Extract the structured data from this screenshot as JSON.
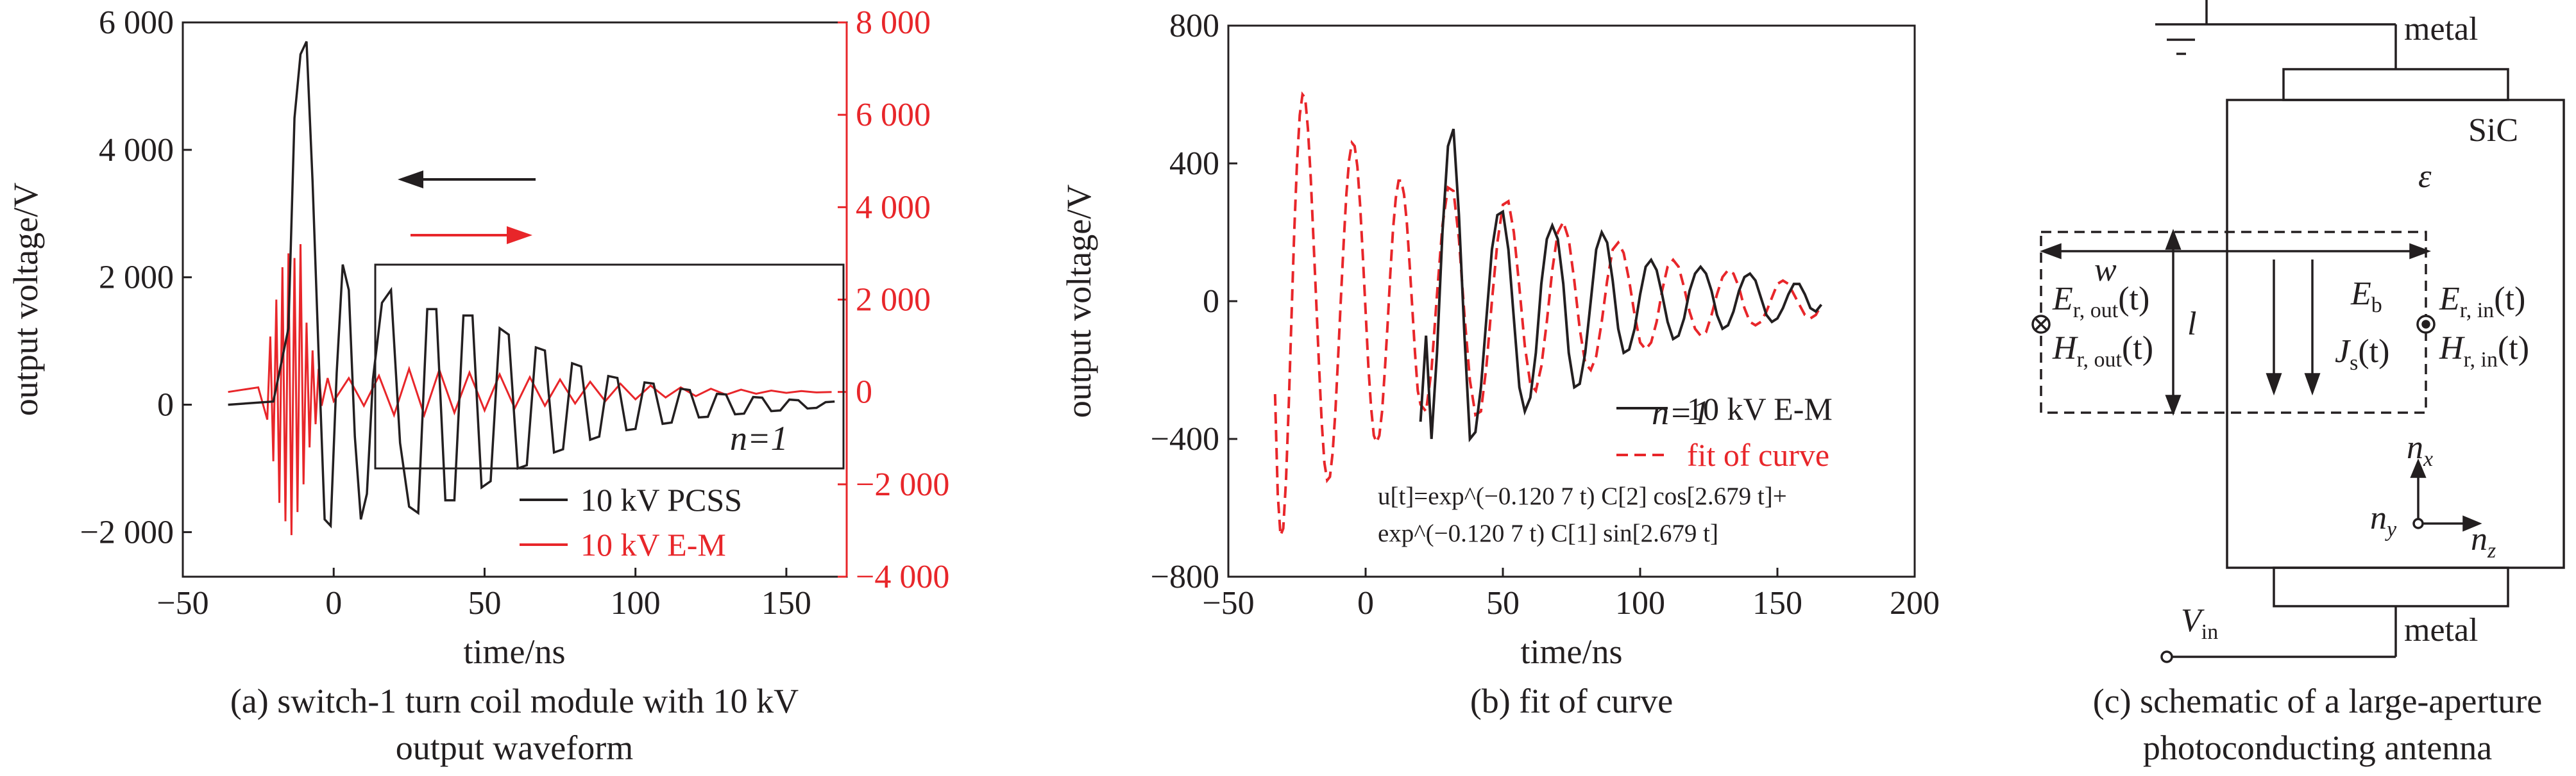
{
  "colors": {
    "black": "#231f20",
    "red": "#e8262a"
  },
  "chart_data": [
    {
      "type": "line",
      "caption_line1": "(a) switch-1 turn coil module with 10 kV",
      "caption_line2": "output waveform",
      "xlabel": "time/ns",
      "ylabel": "output voltage/V",
      "xlim": [
        -50,
        170
      ],
      "ylim_left": [
        -2700,
        6000
      ],
      "ylim_right": [
        -4000,
        8000
      ],
      "x_ticks": [
        "−50",
        "0",
        "50",
        "100",
        "150"
      ],
      "y_ticks_left": [
        "−2 000",
        "0",
        "2 000",
        "4 000",
        "6 000"
      ],
      "y_ticks_right": [
        "−4 000",
        "−2 000",
        "0",
        "2 000",
        "4 000",
        "6 000",
        "8 000"
      ],
      "inset_label": "n=1",
      "series": [
        {
          "name": "10 kV PCSS",
          "axis": "left",
          "color": "#231f20",
          "x": [
            -35,
            -20,
            -15,
            -13,
            -11,
            -9,
            -7,
            -5,
            -3,
            -1,
            1,
            3,
            5,
            7,
            9,
            11,
            13,
            16,
            19,
            22,
            25,
            28,
            31,
            34,
            37,
            40,
            43,
            46,
            49,
            52,
            55,
            58,
            61,
            64,
            67,
            70,
            73,
            76,
            79,
            82,
            85,
            88,
            91,
            94,
            97,
            100,
            103,
            106,
            109,
            112,
            115,
            118,
            121,
            124,
            127,
            130,
            133,
            136,
            139,
            142,
            145,
            148,
            151,
            154,
            157,
            160,
            163,
            166
          ],
          "y": [
            0,
            50,
            1200,
            4500,
            5500,
            5700,
            3500,
            800,
            -1800,
            -1900,
            500,
            2200,
            1800,
            -500,
            -1800,
            -1400,
            400,
            1600,
            1800,
            -600,
            -1600,
            -1700,
            1500,
            1500,
            -1500,
            -1500,
            1400,
            1400,
            -1300,
            -1200,
            1200,
            1100,
            -1000,
            -950,
            900,
            850,
            -750,
            -700,
            650,
            600,
            -550,
            -500,
            450,
            420,
            -400,
            -380,
            350,
            330,
            -300,
            -280,
            250,
            230,
            -200,
            -190,
            170,
            160,
            -150,
            -140,
            120,
            110,
            -100,
            -90,
            80,
            70,
            -60,
            -50,
            40,
            50
          ]
        },
        {
          "name": "10 kV E-M",
          "axis": "right",
          "color": "#e8262a",
          "x": [
            -35,
            -25,
            -22,
            -21,
            -20,
            -19,
            -18,
            -17,
            -16,
            -15,
            -14,
            -13,
            -12,
            -11,
            -10,
            -9,
            -8,
            -7,
            -6,
            -5,
            -4,
            -2,
            0,
            5,
            10,
            15,
            20,
            25,
            30,
            35,
            40,
            45,
            50,
            55,
            60,
            65,
            70,
            75,
            80,
            85,
            90,
            95,
            100,
            105,
            110,
            115,
            120,
            125,
            130,
            135,
            140,
            145,
            150,
            155,
            160,
            165
          ],
          "y": [
            0,
            100,
            -600,
            1200,
            -1500,
            2000,
            -2400,
            2700,
            -2800,
            3000,
            -3100,
            2900,
            -2600,
            3200,
            -2000,
            1500,
            -1200,
            900,
            -700,
            500,
            -300,
            300,
            -200,
            300,
            -300,
            350,
            -500,
            500,
            -500,
            480,
            -450,
            420,
            -400,
            380,
            -350,
            320,
            -300,
            270,
            -250,
            220,
            -200,
            180,
            -160,
            140,
            -120,
            100,
            -90,
            70,
            -60,
            50,
            -40,
            30,
            -20,
            20,
            -10,
            0
          ]
        }
      ]
    },
    {
      "type": "line",
      "caption": "(b) fit of curve",
      "xlabel": "time/ns",
      "ylabel": "output voltage/V",
      "xlim": [
        -50,
        200
      ],
      "ylim": [
        -800,
        800
      ],
      "x_ticks": [
        "−50",
        "0",
        "50",
        "100",
        "150",
        "200"
      ],
      "y_ticks": [
        "−800",
        "−400",
        "0",
        "400",
        "800"
      ],
      "inset_label": "n=1",
      "equation_line1": "u[t]=exp^(−0.120 7 t) C[2] cos[2.679 t]+",
      "equation_line2": "exp^(−0.120 7 t) C[1] sin[2.679 t]",
      "series": [
        {
          "name": "10 kV E-M",
          "style": "solid",
          "color": "#231f20",
          "x": [
            20,
            22,
            24,
            26,
            28,
            30,
            32,
            34,
            36,
            38,
            40,
            42,
            44,
            46,
            48,
            50,
            52,
            54,
            56,
            58,
            60,
            62,
            64,
            66,
            68,
            70,
            72,
            74,
            76,
            78,
            80,
            82,
            84,
            86,
            88,
            90,
            92,
            94,
            96,
            98,
            100,
            102,
            104,
            106,
            108,
            110,
            112,
            114,
            116,
            118,
            120,
            122,
            124,
            126,
            128,
            130,
            132,
            134,
            136,
            138,
            140,
            142,
            144,
            146,
            148,
            150,
            152,
            154,
            156,
            158,
            160,
            162,
            164,
            166
          ],
          "y": [
            -350,
            -100,
            -400,
            -150,
            200,
            450,
            500,
            250,
            -100,
            -400,
            -380,
            -250,
            -50,
            150,
            250,
            260,
            150,
            -50,
            -250,
            -320,
            -280,
            -150,
            50,
            180,
            220,
            180,
            50,
            -150,
            -250,
            -240,
            -150,
            0,
            150,
            200,
            170,
            60,
            -80,
            -150,
            -140,
            -80,
            20,
            100,
            120,
            90,
            20,
            -60,
            -110,
            -100,
            -50,
            30,
            80,
            100,
            80,
            30,
            -40,
            -80,
            -70,
            -30,
            30,
            70,
            80,
            60,
            10,
            -40,
            -60,
            -50,
            -20,
            20,
            50,
            50,
            20,
            -20,
            -30,
            -10
          ]
        },
        {
          "name": "fit of curve",
          "style": "dashed",
          "color": "#e8262a",
          "x": [
            -33,
            -32,
            -31,
            -30,
            -29,
            -28,
            -27,
            -26,
            -25,
            -24,
            -23,
            -22,
            -21,
            -20,
            -19,
            -18,
            -17,
            -16,
            -15,
            -14,
            -13,
            -12,
            -11,
            -10,
            -9,
            -8,
            -7,
            -6,
            -5,
            -4,
            -3,
            -2,
            -1,
            0,
            1,
            2,
            3,
            4,
            5,
            6,
            7,
            8,
            9,
            10,
            11,
            12,
            13,
            14,
            15,
            16,
            17,
            18,
            19,
            20,
            22,
            24,
            26,
            28,
            30,
            32,
            34,
            36,
            38,
            40,
            42,
            44,
            46,
            48,
            50,
            52,
            54,
            56,
            58,
            60,
            62,
            64,
            66,
            68,
            70,
            72,
            74,
            76,
            78,
            80,
            82,
            84,
            86,
            88,
            90,
            92,
            94,
            96,
            98,
            100,
            102,
            104,
            106,
            108,
            110,
            112,
            114,
            116,
            118,
            120,
            122,
            124,
            126,
            128,
            130,
            132,
            134,
            136,
            138,
            140,
            142,
            144,
            146,
            148,
            150,
            152,
            154,
            156,
            158,
            160,
            162,
            164,
            166
          ],
          "y": [
            -270,
            -560,
            -680,
            -660,
            -520,
            -300,
            -50,
            200,
            400,
            540,
            600,
            590,
            500,
            360,
            180,
            0,
            -180,
            -350,
            -470,
            -520,
            -510,
            -440,
            -320,
            -160,
            10,
            170,
            310,
            410,
            460,
            450,
            390,
            280,
            130,
            -30,
            -190,
            -310,
            -390,
            -410,
            -390,
            -320,
            -200,
            -70,
            80,
            210,
            300,
            350,
            350,
            310,
            230,
            110,
            -20,
            -150,
            -260,
            -300,
            -320,
            -200,
            20,
            220,
            330,
            320,
            180,
            -40,
            -230,
            -330,
            -320,
            -190,
            0,
            170,
            280,
            290,
            200,
            40,
            -130,
            -240,
            -260,
            -190,
            -60,
            90,
            200,
            230,
            180,
            60,
            -80,
            -180,
            -200,
            -160,
            -60,
            60,
            150,
            170,
            140,
            60,
            -40,
            -120,
            -140,
            -120,
            -60,
            30,
            100,
            120,
            100,
            40,
            -30,
            -80,
            -100,
            -90,
            -40,
            20,
            70,
            90,
            80,
            40,
            -20,
            -60,
            -70,
            -60,
            -30,
            10,
            50,
            60,
            50,
            20,
            -10,
            -40,
            -50,
            -40,
            -10
          ]
        }
      ]
    }
  ],
  "schematic": {
    "caption_line1": "(c) schematic of a large-aperture",
    "caption_line2": "photoconducting antenna",
    "metal_top": "metal",
    "metal_bottom": "metal",
    "material": "SiC",
    "epsilon": "ε",
    "w": "w",
    "l": "l",
    "E_b": "E",
    "E_b_sub": "b",
    "J_s": "J",
    "J_s_sub": "s",
    "J_s_arg": "(t)",
    "E_out": "E",
    "E_out_sub": "r, out",
    "E_out_arg": "(t)",
    "H_out": "H",
    "H_out_sub": "r, out",
    "H_out_arg": "(t)",
    "E_in": "E",
    "E_in_sub": "r, in",
    "E_in_arg": "(t)",
    "H_in": "H",
    "H_in_sub": "r, in",
    "H_in_arg": "(t)",
    "n_x": "n",
    "n_x_sub": "x",
    "n_y": "n",
    "n_y_sub": "y",
    "n_z": "n",
    "n_z_sub": "z",
    "V_in": "V",
    "V_in_sub": "in"
  }
}
